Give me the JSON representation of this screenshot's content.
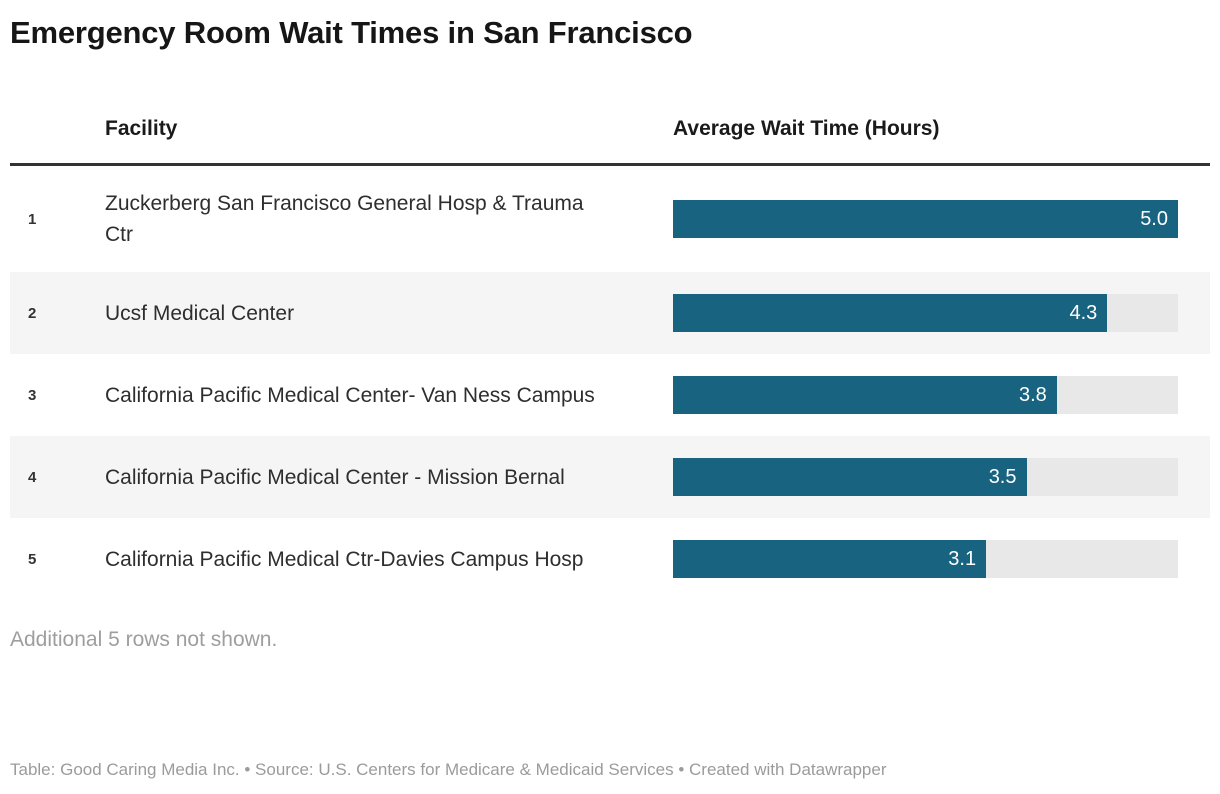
{
  "title": "Emergency Room Wait Times in San Francisco",
  "table": {
    "columns": {
      "facility": "Facility",
      "value": "Average Wait Time (Hours)"
    },
    "max_value": 5.0,
    "rows": [
      {
        "rank": "1",
        "facility": "Zuckerberg San Francisco General Hosp & Trauma Ctr",
        "value": 5.0,
        "label": "5.0"
      },
      {
        "rank": "2",
        "facility": "Ucsf Medical Center",
        "value": 4.3,
        "label": "4.3"
      },
      {
        "rank": "3",
        "facility": "California Pacific Medical Center- Van Ness Campus",
        "value": 3.8,
        "label": "3.8"
      },
      {
        "rank": "4",
        "facility": "California Pacific Medical Center - Mission Bernal",
        "value": 3.5,
        "label": "3.5"
      },
      {
        "rank": "5",
        "facility": "California Pacific Medical Ctr-Davies Campus Hosp",
        "value": 3.1,
        "label": "3.1"
      }
    ]
  },
  "notes": {
    "additional_rows": "Additional 5 rows not shown."
  },
  "footer": {
    "table_prefix": "Table: ",
    "table_credit": "Good Caring Media Inc.",
    "source_prefix": " • Source: ",
    "source_name": "U.S. Centers for Medicare & Medicaid Services",
    "created_prefix": " • Created with ",
    "created_tool": "Datawrapper"
  },
  "colors": {
    "bar": "#186380",
    "bar_track": "#e8e8e8",
    "stripe": "#f5f5f5",
    "header_rule": "#333333",
    "value_label": "#ffffff",
    "muted_text": "#9b9b9b"
  },
  "chart_data": {
    "type": "bar",
    "orientation": "horizontal",
    "title": "Emergency Room Wait Times in San Francisco",
    "categories": [
      "Zuckerberg San Francisco General Hosp & Trauma Ctr",
      "Ucsf Medical Center",
      "California Pacific Medical Center- Van Ness Campus",
      "California Pacific Medical Center - Mission Bernal",
      "California Pacific Medical Ctr-Davies Campus Hosp"
    ],
    "values": [
      5.0,
      4.3,
      3.8,
      3.5,
      3.1
    ],
    "value_labels": [
      "5.0",
      "4.3",
      "3.8",
      "3.5",
      "3.1"
    ],
    "xlabel": "Average Wait Time (Hours)",
    "ylabel": "Facility",
    "xlim": [
      0,
      5.0
    ],
    "grid": false,
    "legend": false,
    "annotations": [
      "Additional 5 rows not shown."
    ]
  }
}
